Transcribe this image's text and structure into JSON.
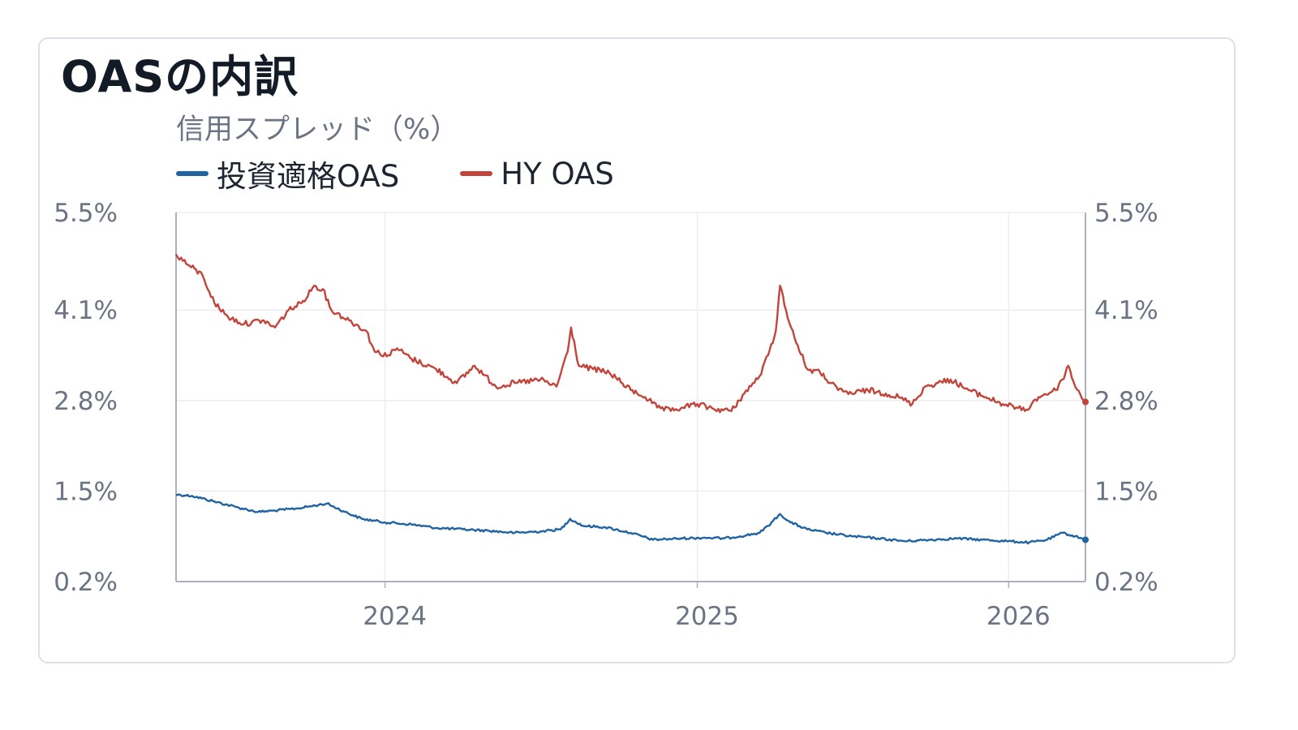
{
  "header": {
    "title": "OASの内訳"
  },
  "chart_data": {
    "type": "line",
    "title": "OASの内訳",
    "ylabel": "信用スプレッド（%）",
    "xlabel": "",
    "y_ticks": [
      "0.2%",
      "1.5%",
      "2.8%",
      "4.1%",
      "5.5%"
    ],
    "y_tick_values": [
      0.2,
      1.5,
      2.8,
      4.1,
      5.5
    ],
    "ylim": [
      0.2,
      5.5
    ],
    "x_ticks": [
      "2024",
      "2025",
      "2026"
    ],
    "x_tick_dates": [
      "2024-01-01",
      "2025-01-01",
      "2026-01-01"
    ],
    "xlim": [
      "2023-05-01",
      "2026-04-01"
    ],
    "grid": true,
    "legend_position": "top-left",
    "series": [
      {
        "name": "投資適格OAS",
        "color": "#1f63a3",
        "x": [
          "2023-05-01",
          "2023-05-20",
          "2023-06-15",
          "2023-07-10",
          "2023-08-05",
          "2023-08-25",
          "2023-09-20",
          "2023-10-15",
          "2023-10-25",
          "2023-11-15",
          "2023-12-05",
          "2024-01-01",
          "2024-02-01",
          "2024-03-01",
          "2024-04-01",
          "2024-05-01",
          "2024-06-01",
          "2024-07-01",
          "2024-07-25",
          "2024-08-05",
          "2024-08-20",
          "2024-09-15",
          "2024-10-15",
          "2024-11-10",
          "2024-11-25",
          "2024-12-15",
          "2025-01-10",
          "2025-02-01",
          "2025-02-20",
          "2025-03-15",
          "2025-03-25",
          "2025-04-08",
          "2025-04-20",
          "2025-05-10",
          "2025-06-01",
          "2025-07-01",
          "2025-08-01",
          "2025-09-01",
          "2025-10-01",
          "2025-11-01",
          "2025-12-01",
          "2026-01-01",
          "2026-01-25",
          "2026-02-15",
          "2026-03-05",
          "2026-03-20",
          "2026-04-01"
        ],
        "y": [
          1.45,
          1.43,
          1.35,
          1.27,
          1.2,
          1.22,
          1.25,
          1.3,
          1.32,
          1.2,
          1.1,
          1.05,
          1.02,
          0.97,
          0.95,
          0.93,
          0.9,
          0.92,
          0.95,
          1.1,
          1.0,
          0.98,
          0.9,
          0.8,
          0.81,
          0.82,
          0.83,
          0.82,
          0.85,
          0.9,
          1.0,
          1.17,
          1.05,
          0.95,
          0.9,
          0.85,
          0.82,
          0.78,
          0.8,
          0.82,
          0.8,
          0.78,
          0.76,
          0.8,
          0.9,
          0.85,
          0.8
        ]
      },
      {
        "name": "HY OAS",
        "color": "#c2443a",
        "x": [
          "2023-05-01",
          "2023-05-15",
          "2023-06-01",
          "2023-06-15",
          "2023-07-01",
          "2023-07-20",
          "2023-08-10",
          "2023-08-25",
          "2023-09-10",
          "2023-09-25",
          "2023-10-10",
          "2023-10-20",
          "2023-10-30",
          "2023-11-20",
          "2023-12-10",
          "2023-12-20",
          "2024-01-05",
          "2024-01-15",
          "2024-02-01",
          "2024-03-01",
          "2024-03-25",
          "2024-04-15",
          "2024-05-10",
          "2024-06-01",
          "2024-07-01",
          "2024-07-20",
          "2024-08-02",
          "2024-08-06",
          "2024-08-15",
          "2024-09-01",
          "2024-09-20",
          "2024-10-15",
          "2024-11-01",
          "2024-11-15",
          "2024-12-01",
          "2024-12-15",
          "2025-01-01",
          "2025-01-20",
          "2025-02-10",
          "2025-02-25",
          "2025-03-15",
          "2025-03-25",
          "2025-04-03",
          "2025-04-08",
          "2025-04-15",
          "2025-04-25",
          "2025-05-10",
          "2025-05-25",
          "2025-06-15",
          "2025-07-01",
          "2025-07-20",
          "2025-08-10",
          "2025-08-25",
          "2025-09-10",
          "2025-09-25",
          "2025-10-10",
          "2025-10-25",
          "2025-11-15",
          "2025-12-05",
          "2025-12-25",
          "2026-01-10",
          "2026-01-20",
          "2026-02-05",
          "2026-02-25",
          "2026-03-05",
          "2026-03-12",
          "2026-03-20",
          "2026-04-01"
        ],
        "y": [
          4.9,
          4.75,
          4.6,
          4.2,
          4.0,
          3.9,
          3.95,
          3.85,
          4.1,
          4.2,
          4.45,
          4.4,
          4.1,
          3.95,
          3.8,
          3.5,
          3.45,
          3.55,
          3.4,
          3.25,
          3.05,
          3.3,
          3.0,
          3.05,
          3.1,
          3.0,
          3.5,
          3.85,
          3.3,
          3.25,
          3.2,
          2.95,
          2.85,
          2.7,
          2.65,
          2.7,
          2.75,
          2.68,
          2.65,
          2.9,
          3.15,
          3.45,
          3.8,
          4.45,
          4.1,
          3.7,
          3.25,
          3.2,
          2.95,
          2.9,
          2.95,
          2.9,
          2.85,
          2.75,
          3.0,
          3.05,
          3.1,
          2.95,
          2.85,
          2.75,
          2.7,
          2.65,
          2.85,
          2.95,
          3.1,
          3.3,
          3.0,
          2.78
        ]
      }
    ]
  }
}
